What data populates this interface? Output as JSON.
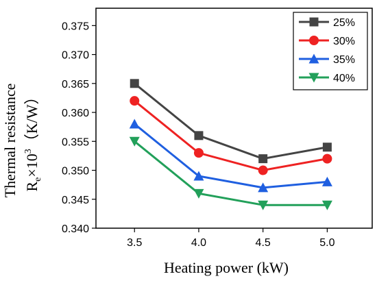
{
  "chart_data": {
    "type": "line",
    "x": [
      3.5,
      4.0,
      4.5,
      5.0
    ],
    "x_tick_labels": [
      "3.5",
      "4.0",
      "4.5",
      "5.0"
    ],
    "y_tick_labels": [
      "0.340",
      "0.345",
      "0.350",
      "0.355",
      "0.360",
      "0.365",
      "0.370",
      "0.375"
    ],
    "xlim": [
      3.2,
      5.35
    ],
    "ylim": [
      0.34,
      0.378
    ],
    "xlabel": "Heating power (kW)",
    "ylabel_line1": "Thermal resistance",
    "ylabel_line2_base": "R",
    "ylabel_line2_sub": "e",
    "ylabel_line2_times": "×10",
    "ylabel_line2_sup": "3",
    "ylabel_line2_unit": "（K/W）",
    "legend_position": "top-right",
    "grid": false,
    "series": [
      {
        "name": "25%",
        "values": [
          0.365,
          0.356,
          0.352,
          0.354
        ],
        "color": "#444444",
        "marker": "square"
      },
      {
        "name": "30%",
        "values": [
          0.362,
          0.353,
          0.35,
          0.352
        ],
        "color": "#ee2222",
        "marker": "circle"
      },
      {
        "name": "35%",
        "values": [
          0.358,
          0.349,
          0.347,
          0.348
        ],
        "color": "#1f5fe0",
        "marker": "triangle-up"
      },
      {
        "name": "40%",
        "values": [
          0.355,
          0.346,
          0.344,
          0.344
        ],
        "color": "#22a05a",
        "marker": "triangle-down"
      }
    ]
  }
}
